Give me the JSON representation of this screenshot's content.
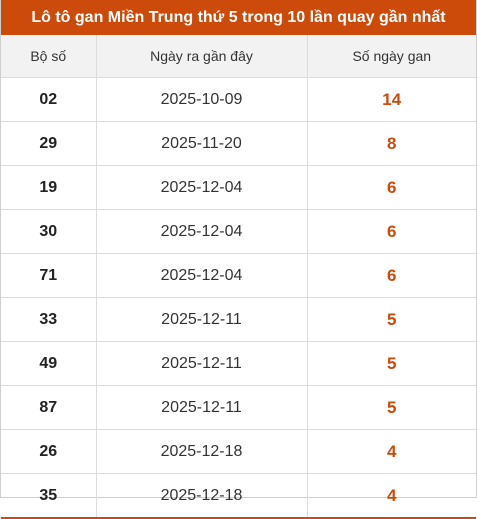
{
  "title": "Lô tô gan Miền Trung thứ 5 trong 10 lần quay gần nhất",
  "columns": [
    "Bộ số",
    "Ngày ra gần đây",
    "Số ngày gan"
  ],
  "rows": [
    {
      "number": "02",
      "date": "2025-10-09",
      "gap": "14"
    },
    {
      "number": "29",
      "date": "2025-11-20",
      "gap": "8"
    },
    {
      "number": "19",
      "date": "2025-12-04",
      "gap": "6"
    },
    {
      "number": "30",
      "date": "2025-12-04",
      "gap": "6"
    },
    {
      "number": "71",
      "date": "2025-12-04",
      "gap": "6"
    },
    {
      "number": "33",
      "date": "2025-12-11",
      "gap": "5"
    },
    {
      "number": "49",
      "date": "2025-12-11",
      "gap": "5"
    },
    {
      "number": "87",
      "date": "2025-12-11",
      "gap": "5"
    },
    {
      "number": "26",
      "date": "2025-12-18",
      "gap": "4"
    },
    {
      "number": "35",
      "date": "2025-12-18",
      "gap": "4"
    }
  ],
  "colors": {
    "accent": "#cc4a0a",
    "header_bg": "#f2f2f2",
    "border": "#dcdcdc"
  }
}
